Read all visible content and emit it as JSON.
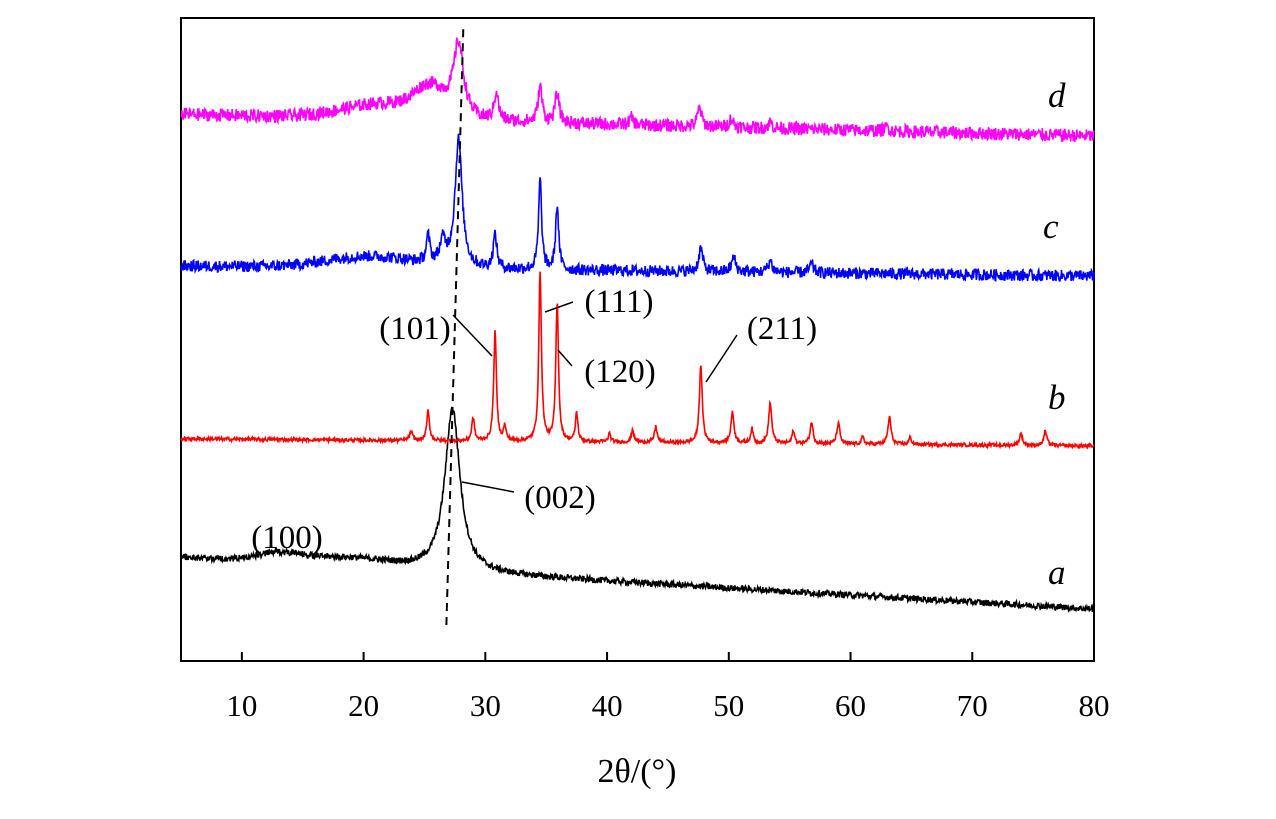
{
  "chart_data": {
    "type": "line",
    "title": "",
    "xlabel": "2θ/(°)",
    "ylabel": "",
    "xlim": [
      5,
      80
    ],
    "xticks": [
      10,
      20,
      30,
      40,
      50,
      60,
      70,
      80
    ],
    "y_tick_labels": false,
    "grid": false,
    "legend": "none",
    "series": [
      {
        "name": "a",
        "color": "#000000",
        "baseline_start": 3.6,
        "baseline_end": 0.0,
        "noise": 0.22,
        "features": [
          {
            "type": "hump",
            "center": 13,
            "width": 1.8,
            "height": 0.6
          },
          {
            "type": "hump",
            "center": 17.5,
            "width": 2.5,
            "height": 0.45
          },
          {
            "type": "hump",
            "center": 21.5,
            "width": 2.5,
            "height": 0.3
          },
          {
            "type": "peak",
            "center": 27.3,
            "width": 0.75,
            "height": 11.3
          }
        ]
      },
      {
        "name": "b",
        "color": "#ff0000",
        "baseline_start": 0.5,
        "baseline_end": 0.0,
        "noise": 0.12,
        "features": [
          {
            "type": "peak",
            "center": 23.9,
            "width": 0.15,
            "height": 0.6
          },
          {
            "type": "peak",
            "center": 25.3,
            "width": 0.13,
            "height": 2.1
          },
          {
            "type": "peak",
            "center": 29.0,
            "width": 0.13,
            "height": 1.6
          },
          {
            "type": "peak",
            "center": 30.8,
            "width": 0.13,
            "height": 7.6
          },
          {
            "type": "peak",
            "center": 31.6,
            "width": 0.12,
            "height": 1.0
          },
          {
            "type": "peak",
            "center": 34.5,
            "width": 0.13,
            "height": 11.7
          },
          {
            "type": "peak",
            "center": 35.9,
            "width": 0.13,
            "height": 9.6
          },
          {
            "type": "peak",
            "center": 37.5,
            "width": 0.12,
            "height": 2.0
          },
          {
            "type": "peak",
            "center": 40.2,
            "width": 0.12,
            "height": 0.6
          },
          {
            "type": "peak",
            "center": 42.1,
            "width": 0.12,
            "height": 0.9
          },
          {
            "type": "peak",
            "center": 44.0,
            "width": 0.13,
            "height": 1.1
          },
          {
            "type": "peak",
            "center": 47.7,
            "width": 0.14,
            "height": 5.4
          },
          {
            "type": "peak",
            "center": 50.3,
            "width": 0.15,
            "height": 2.1
          },
          {
            "type": "peak",
            "center": 51.9,
            "width": 0.12,
            "height": 1.0
          },
          {
            "type": "peak",
            "center": 53.4,
            "width": 0.15,
            "height": 2.8
          },
          {
            "type": "peak",
            "center": 55.3,
            "width": 0.12,
            "height": 0.9
          },
          {
            "type": "peak",
            "center": 56.8,
            "width": 0.14,
            "height": 1.5
          },
          {
            "type": "peak",
            "center": 59.0,
            "width": 0.15,
            "height": 1.4
          },
          {
            "type": "peak",
            "center": 61.0,
            "width": 0.12,
            "height": 0.5
          },
          {
            "type": "peak",
            "center": 63.2,
            "width": 0.15,
            "height": 1.9
          },
          {
            "type": "peak",
            "center": 64.9,
            "width": 0.12,
            "height": 0.5
          },
          {
            "type": "peak",
            "center": 74.0,
            "width": 0.15,
            "height": 0.8
          },
          {
            "type": "peak",
            "center": 76.0,
            "width": 0.15,
            "height": 1.0
          }
        ]
      },
      {
        "name": "c",
        "color": "#0000ff",
        "baseline_start": 0.7,
        "baseline_end": 0.0,
        "noise": 0.4,
        "features": [
          {
            "type": "hump",
            "center": 20.5,
            "width": 3.5,
            "height": 0.8
          },
          {
            "type": "peak",
            "center": 25.3,
            "width": 0.18,
            "height": 1.8
          },
          {
            "type": "peak",
            "center": 26.5,
            "width": 0.3,
            "height": 1.5
          },
          {
            "type": "peak",
            "center": 27.8,
            "width": 0.35,
            "height": 8.8
          },
          {
            "type": "peak",
            "center": 30.8,
            "width": 0.18,
            "height": 2.3
          },
          {
            "type": "peak",
            "center": 34.5,
            "width": 0.15,
            "height": 6.2
          },
          {
            "type": "peak",
            "center": 35.9,
            "width": 0.15,
            "height": 4.4
          },
          {
            "type": "peak",
            "center": 47.7,
            "width": 0.2,
            "height": 1.6
          },
          {
            "type": "peak",
            "center": 50.4,
            "width": 0.2,
            "height": 1.0
          },
          {
            "type": "peak",
            "center": 53.4,
            "width": 0.2,
            "height": 0.8
          },
          {
            "type": "peak",
            "center": 56.8,
            "width": 0.2,
            "height": 0.6
          }
        ]
      },
      {
        "name": "d",
        "color": "#ff00ff",
        "baseline_start": 1.5,
        "baseline_end": 0.0,
        "noise": 0.45,
        "features": [
          {
            "type": "hump",
            "center": 22.0,
            "width": 3.5,
            "height": 1.1
          },
          {
            "type": "hump",
            "center": 25.5,
            "width": 1.2,
            "height": 1.7
          },
          {
            "type": "peak",
            "center": 27.8,
            "width": 0.5,
            "height": 5.0
          },
          {
            "type": "peak",
            "center": 30.9,
            "width": 0.2,
            "height": 2.0
          },
          {
            "type": "peak",
            "center": 34.5,
            "width": 0.2,
            "height": 2.5
          },
          {
            "type": "peak",
            "center": 35.9,
            "width": 0.2,
            "height": 2.0
          },
          {
            "type": "peak",
            "center": 42.0,
            "width": 0.2,
            "height": 0.5
          },
          {
            "type": "peak",
            "center": 47.6,
            "width": 0.2,
            "height": 1.3
          },
          {
            "type": "peak",
            "center": 50.2,
            "width": 0.2,
            "height": 0.6
          },
          {
            "type": "peak",
            "center": 53.4,
            "width": 0.2,
            "height": 0.4
          },
          {
            "type": "peak",
            "center": 63.0,
            "width": 0.2,
            "height": 0.3
          }
        ]
      }
    ],
    "annotations": [
      {
        "text": "(100)",
        "series": "a",
        "x": 13.0
      },
      {
        "text": "(002)",
        "series": "a",
        "x": 27.3
      },
      {
        "text": "(101)",
        "series": "b",
        "x": 30.8
      },
      {
        "text": "(111)",
        "series": "b",
        "x": 34.5
      },
      {
        "text": "(120)",
        "series": "b",
        "x": 35.9
      },
      {
        "text": "(211)",
        "series": "b",
        "x": 47.7
      }
    ],
    "reference_line": {
      "style": "dashed",
      "x_bottom": 26.8,
      "x_top": 28.2
    }
  }
}
